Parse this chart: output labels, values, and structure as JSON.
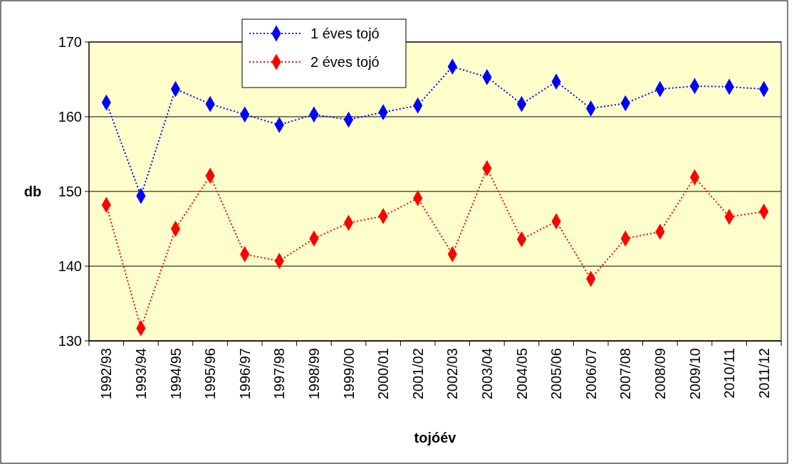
{
  "chart_data": {
    "type": "line",
    "xlabel": "tojóév",
    "ylabel": "db",
    "categories": [
      "1992/93",
      "1993/94",
      "1994/95",
      "1995/96",
      "1996/97",
      "1997/98",
      "1998/99",
      "1999/00",
      "2000/01",
      "2001/02",
      "2002/03",
      "2003/04",
      "2004/05",
      "2005/06",
      "2006/07",
      "2007/08",
      "2008/09",
      "2009/10",
      "2010/11",
      "2011/12"
    ],
    "series": [
      {
        "name": "1 éves tojó",
        "color": "#0000ff",
        "values": [
          161.9,
          149.4,
          163.7,
          161.7,
          160.3,
          158.9,
          160.3,
          159.6,
          160.6,
          161.5,
          166.7,
          165.3,
          161.7,
          164.7,
          161.1,
          161.8,
          163.7,
          164.1,
          164.0,
          163.7
        ]
      },
      {
        "name": "2 éves tojó",
        "color": "#ff0000",
        "values": [
          148.2,
          131.7,
          145.0,
          152.1,
          141.6,
          140.7,
          143.7,
          145.8,
          146.7,
          149.1,
          141.6,
          153.1,
          143.6,
          146.0,
          138.3,
          143.7,
          144.6,
          151.9,
          146.6,
          147.3
        ]
      }
    ],
    "ylim": [
      130,
      170
    ],
    "yticks": [
      130,
      140,
      150,
      160,
      170
    ],
    "grid": "y",
    "legend": "top",
    "marker": "diamond",
    "line_style": "dotted"
  }
}
